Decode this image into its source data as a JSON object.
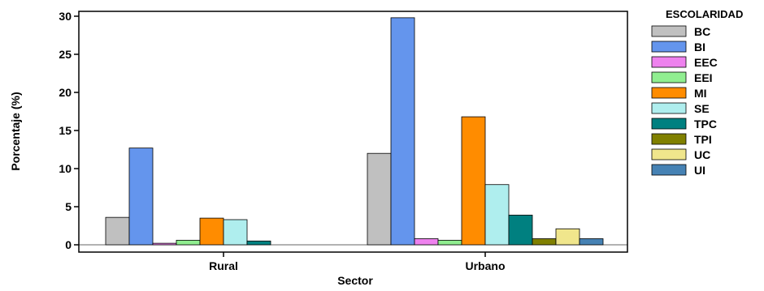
{
  "chart_data": {
    "type": "bar",
    "categories": [
      "Rural",
      "Urbano"
    ],
    "xlabel": "Sector",
    "ylabel": "Porcentaje (%)",
    "ylim": [
      0,
      31
    ],
    "yticks": [
      0,
      5,
      10,
      15,
      20,
      25,
      30
    ],
    "grid": false,
    "legend": {
      "title": "ESCOLARIDAD",
      "placement": "right"
    },
    "series": [
      {
        "name": "BC",
        "color": "#c0c0c0",
        "values": [
          3.6,
          12.0
        ]
      },
      {
        "name": "BI",
        "color": "#6495ed",
        "values": [
          12.7,
          29.8
        ]
      },
      {
        "name": "EEC",
        "color": "#ee82ee",
        "values": [
          0.2,
          0.8
        ]
      },
      {
        "name": "EEI",
        "color": "#90ee90",
        "values": [
          0.6,
          0.6
        ]
      },
      {
        "name": "MI",
        "color": "#ff8c00",
        "values": [
          3.5,
          16.8
        ]
      },
      {
        "name": "SE",
        "color": "#afeeee",
        "values": [
          3.3,
          7.9
        ]
      },
      {
        "name": "TPC",
        "color": "#008080",
        "values": [
          0.5,
          3.9
        ]
      },
      {
        "name": "TPI",
        "color": "#808000",
        "values": [
          0.0,
          0.8
        ]
      },
      {
        "name": "UC",
        "color": "#f0e68c",
        "values": [
          0.0,
          2.1
        ]
      },
      {
        "name": "UI",
        "color": "#4682b4",
        "values": [
          0.0,
          0.8
        ]
      }
    ]
  }
}
